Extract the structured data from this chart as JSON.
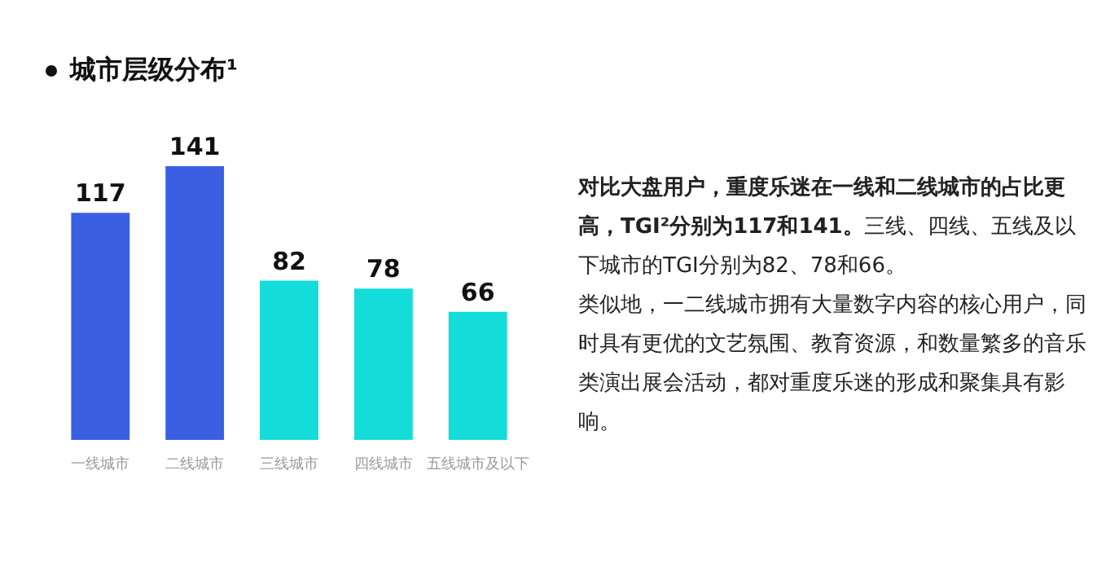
{
  "chart_data": {
    "type": "bar",
    "title": "城市层级分布¹",
    "categories": [
      "一线城市",
      "二线城市",
      "三线城市",
      "四线城市",
      "五线城市及以下"
    ],
    "values": [
      117,
      141,
      82,
      78,
      66
    ],
    "colors": [
      "#3b5fe2",
      "#3b5fe2",
      "#14dcd9",
      "#14dcd9",
      "#14dcd9"
    ],
    "data_labels": true,
    "grid": false,
    "tick_labels": "x",
    "annotations": [
      "对比大盘用户，重度乐迷在一线和二线城市的占比更高，TGI²分别为117和141。",
      "三线、四线、五线及以下城市的TGI分别为82、78和66。",
      "类似地，一二线城市拥有大量数字内容的核心用户，同时具有更优的文艺氛围、教育资源，和数量繁多的音乐类演出展会活动，都对重度乐迷的形成和聚集具有影响。"
    ]
  }
}
